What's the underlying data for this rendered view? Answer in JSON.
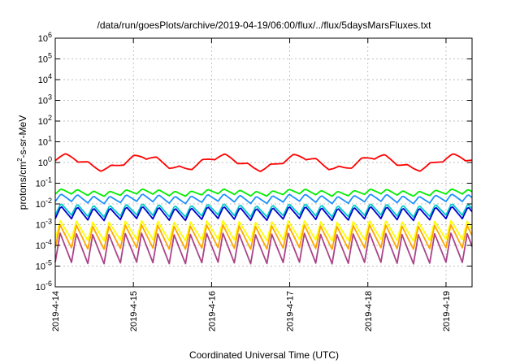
{
  "chart_data": {
    "type": "line",
    "title": "/data/run/goesPlots/archive/2019-04-19/06:00/flux/../flux/5daysMarsFluxes.txt",
    "xlabel": "Coordinated Universal Time (UTC)",
    "ylabel_main": "protons/cm",
    "ylabel_sup": "2",
    "ylabel_rest": "-s-sr-MeV",
    "yscale": "log",
    "ylim": [
      1e-06,
      1000000.0
    ],
    "xlim": [
      "2019-04-14 00:00",
      "2019-04-19 08:00"
    ],
    "grid": true,
    "yticks": [
      {
        "base": "10",
        "exp": "-6"
      },
      {
        "base": "10",
        "exp": "-5"
      },
      {
        "base": "10",
        "exp": "-4"
      },
      {
        "base": "10",
        "exp": "-3"
      },
      {
        "base": "10",
        "exp": "-2"
      },
      {
        "base": "10",
        "exp": "-1"
      },
      {
        "base": "10",
        "exp": "0"
      },
      {
        "base": "10",
        "exp": "1"
      },
      {
        "base": "10",
        "exp": "2"
      },
      {
        "base": "10",
        "exp": "3"
      },
      {
        "base": "10",
        "exp": "4"
      },
      {
        "base": "10",
        "exp": "5"
      },
      {
        "base": "10",
        "exp": "6"
      }
    ],
    "xticks": [
      "2019-4-14",
      "2019-4-15",
      "2019-4-16",
      "2019-4-17",
      "2019-4-18",
      "2019-4-19"
    ],
    "series": [
      {
        "color": "#ff0000",
        "level": 0.0,
        "amp": 0.13,
        "drift": 0.3,
        "period_hours": 7,
        "ramp": 0.45
      },
      {
        "color": "#00ee00",
        "level": -1.45,
        "amp": 0.12,
        "drift": 0.06,
        "period_hours": 5,
        "ramp": 0.35
      },
      {
        "color": "#1e90ff",
        "level": -1.75,
        "amp": 0.18,
        "drift": 0.06,
        "period_hours": 5,
        "ramp": 0.35
      },
      {
        "color": "#00cccc",
        "level": -2.3,
        "amp": 0.28,
        "drift": 0.05,
        "period_hours": 5,
        "ramp": 0.35
      },
      {
        "color": "#0000cc",
        "level": -2.45,
        "amp": 0.3,
        "drift": 0.05,
        "period_hours": 5,
        "ramp": 0.35
      },
      {
        "color": "#ffff00",
        "level": -3.3,
        "amp": 0.45,
        "drift": 0.04,
        "period_hours": 5,
        "ramp": 0.3
      },
      {
        "color": "#ffa500",
        "level": -3.6,
        "amp": 0.55,
        "drift": 0.04,
        "period_hours": 5,
        "ramp": 0.3
      },
      {
        "color": "#aa4488",
        "level": -4.15,
        "amp": 0.7,
        "drift": 0.04,
        "period_hours": 5,
        "ramp": 0.3
      }
    ]
  }
}
